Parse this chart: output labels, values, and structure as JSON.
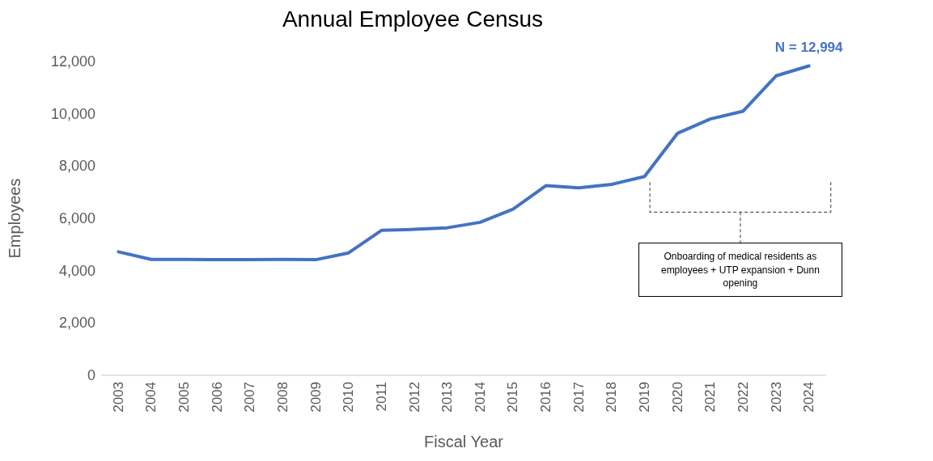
{
  "chart_data": {
    "type": "line",
    "title": "Annual Employee Census",
    "xlabel": "Fiscal Year",
    "ylabel": "Employees",
    "categories": [
      "2003",
      "2004",
      "2005",
      "2006",
      "2007",
      "2008",
      "2009",
      "2010",
      "2011",
      "2012",
      "2013",
      "2014",
      "2015",
      "2016",
      "2017",
      "2018",
      "2019",
      "2020",
      "2021",
      "2022",
      "2023",
      "2024"
    ],
    "series": [
      {
        "color": "#4472c4",
        "values": [
          4720,
          4430,
          4430,
          4420,
          4420,
          4430,
          4420,
          4680,
          5540,
          5580,
          5640,
          5850,
          6350,
          7250,
          7170,
          7300,
          7600,
          9250,
          9800,
          10100,
          11450,
          11830
        ]
      }
    ],
    "ylim": [
      0,
      12000
    ],
    "yticks": [
      0,
      {
        "value": 2000,
        "label": "2,000"
      },
      {
        "value": 4000,
        "label": "4,000"
      },
      {
        "value": 6000,
        "label": "6,000"
      },
      {
        "value": 8000,
        "label": "8,000"
      },
      {
        "value": 10000,
        "label": "10,000"
      },
      {
        "value": 12000,
        "label": "12,000"
      }
    ],
    "grid": false,
    "marker": "none",
    "line_style": "solid",
    "annotations": [
      {
        "text": "N = 12,994",
        "x": "2024",
        "y": 11830
      },
      "Onboarding of medical residents as employees + UTP expansion + Dunn opening"
    ]
  }
}
